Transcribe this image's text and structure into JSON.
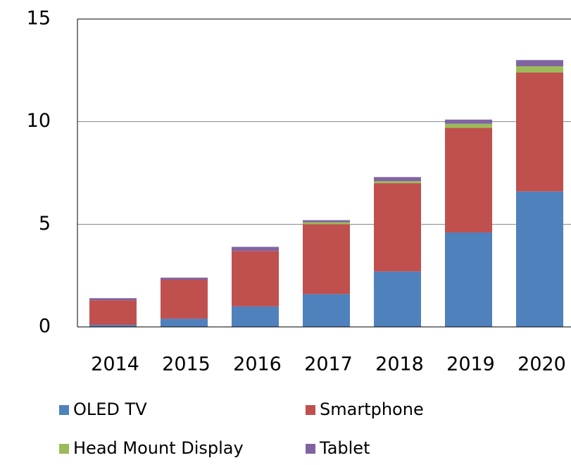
{
  "chart_data": {
    "type": "stacked-bar",
    "categories": [
      "2014",
      "2015",
      "2016",
      "2017",
      "2018",
      "2019",
      "2020"
    ],
    "series": [
      {
        "name": "OLED TV",
        "color": "#4f81bd",
        "values": [
          0.1,
          0.4,
          1.0,
          1.6,
          2.7,
          4.6,
          6.6
        ]
      },
      {
        "name": "Smartphone",
        "color": "#c0504d",
        "values": [
          1.2,
          1.9,
          2.7,
          3.4,
          4.3,
          5.1,
          5.8
        ]
      },
      {
        "name": "Head Mount Display",
        "color": "#9bbb59",
        "values": [
          0,
          0,
          0,
          0.1,
          0.1,
          0.2,
          0.3
        ]
      },
      {
        "name": "Tablet",
        "color": "#8064a2",
        "values": [
          0.1,
          0.1,
          0.2,
          0.1,
          0.2,
          0.2,
          0.3
        ]
      }
    ],
    "ylim": [
      0,
      15
    ],
    "yticks": [
      0,
      5,
      10,
      15
    ],
    "grid": true,
    "legend": "bottom"
  }
}
